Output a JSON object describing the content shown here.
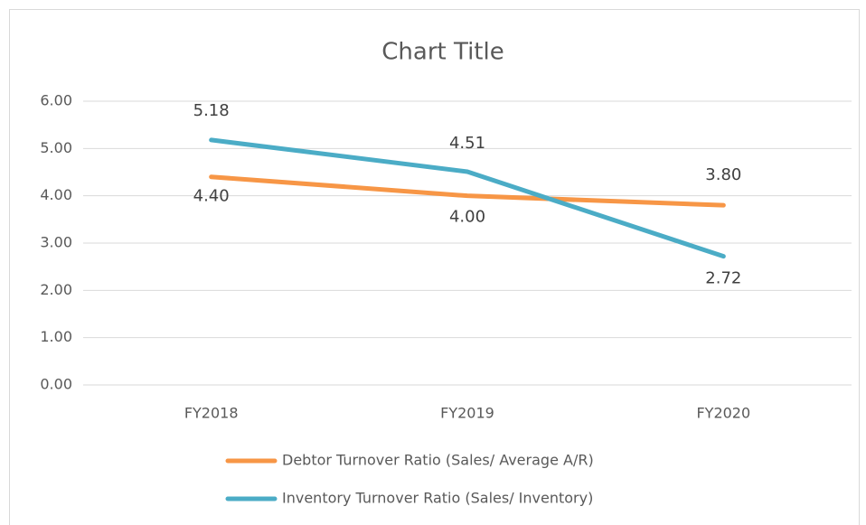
{
  "chart_data": {
    "type": "line",
    "title": "Chart Title",
    "categories": [
      "FY2018",
      "FY2019",
      "FY2020"
    ],
    "series": [
      {
        "name": "Debtor Turnover Ratio (Sales/ Average A/R)",
        "color": "#f79646",
        "values": [
          4.4,
          4.0,
          3.8
        ],
        "value_labels": [
          "4.40",
          "4.00",
          "3.80"
        ]
      },
      {
        "name": "Inventory Turnover Ratio (Sales/ Inventory)",
        "color": "#4bacc6",
        "values": [
          5.18,
          4.51,
          2.72
        ],
        "value_labels": [
          "5.18",
          "4.51",
          "2.72"
        ]
      }
    ],
    "ylim": [
      0,
      6
    ],
    "yticks": [
      {
        "value": 0,
        "label": "0.00"
      },
      {
        "value": 1,
        "label": "1.00"
      },
      {
        "value": 2,
        "label": "2.00"
      },
      {
        "value": 3,
        "label": "3.00"
      },
      {
        "value": 4,
        "label": "4.00"
      },
      {
        "value": 5,
        "label": "5.00"
      },
      {
        "value": 6,
        "label": "6.00"
      }
    ],
    "grid": true,
    "legend": "bottom"
  }
}
